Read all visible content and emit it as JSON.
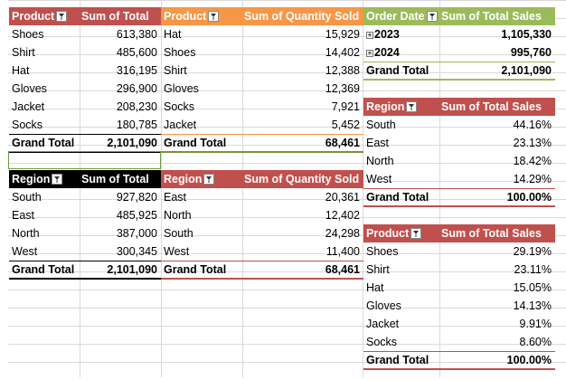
{
  "colors": {
    "red": "#c0504d",
    "orange": "#f79646",
    "olive": "#9bbb59",
    "black": "#000000"
  },
  "pt1": {
    "headers": [
      "Product",
      "Sum of Total"
    ],
    "rows": [
      [
        "Shoes",
        "613,380"
      ],
      [
        "Shirt",
        "485,600"
      ],
      [
        "Hat",
        "316,195"
      ],
      [
        "Gloves",
        "296,900"
      ],
      [
        "Jacket",
        "208,230"
      ],
      [
        "Socks",
        "180,785"
      ]
    ],
    "total": [
      "Grand Total",
      "2,101,090"
    ]
  },
  "pt2": {
    "headers": [
      "Product",
      "Sum of Quantity Sold"
    ],
    "rows": [
      [
        "Hat",
        "15,929"
      ],
      [
        "Shoes",
        "14,402"
      ],
      [
        "Shirt",
        "12,388"
      ],
      [
        "Gloves",
        "12,369"
      ],
      [
        "Socks",
        "7,921"
      ],
      [
        "Jacket",
        "5,452"
      ]
    ],
    "total": [
      "Grand Total",
      "68,461"
    ]
  },
  "pt3": {
    "headers": [
      "Order Date",
      "Sum of Total Sales"
    ],
    "rows": [
      [
        "2023",
        "1,105,330"
      ],
      [
        "2024",
        "995,760"
      ]
    ],
    "total": [
      "Grand Total",
      "2,101,090"
    ]
  },
  "pt4": {
    "headers": [
      "Region",
      "Sum of Total Sales"
    ],
    "rows": [
      [
        "South",
        "44.16%"
      ],
      [
        "East",
        "23.13%"
      ],
      [
        "North",
        "18.42%"
      ],
      [
        "West",
        "14.29%"
      ]
    ],
    "total": [
      "Grand Total",
      "100.00%"
    ]
  },
  "pt5": {
    "headers": [
      "Region",
      "Sum of Total"
    ],
    "rows": [
      [
        "South",
        "927,820"
      ],
      [
        "East",
        "485,925"
      ],
      [
        "North",
        "387,000"
      ],
      [
        "West",
        "300,345"
      ]
    ],
    "total": [
      "Grand Total",
      "2,101,090"
    ]
  },
  "pt6": {
    "headers": [
      "Region",
      "Sum of Quantity Sold"
    ],
    "rows": [
      [
        "East",
        "20,361"
      ],
      [
        "North",
        "12,402"
      ],
      [
        "South",
        "24,298"
      ],
      [
        "West",
        "11,400"
      ]
    ],
    "total": [
      "Grand Total",
      "68,461"
    ]
  },
  "pt7": {
    "headers": [
      "Product",
      "Sum of Total Sales"
    ],
    "rows": [
      [
        "Shoes",
        "29.19%"
      ],
      [
        "Shirt",
        "23.11%"
      ],
      [
        "Hat",
        "15.05%"
      ],
      [
        "Gloves",
        "14.13%"
      ],
      [
        "Jacket",
        "9.91%"
      ],
      [
        "Socks",
        "8.60%"
      ]
    ],
    "total": [
      "Grand Total",
      "100.00%"
    ]
  },
  "filter_icon": "sort-filter-icon",
  "expand_icon": "expand-plus-icon"
}
